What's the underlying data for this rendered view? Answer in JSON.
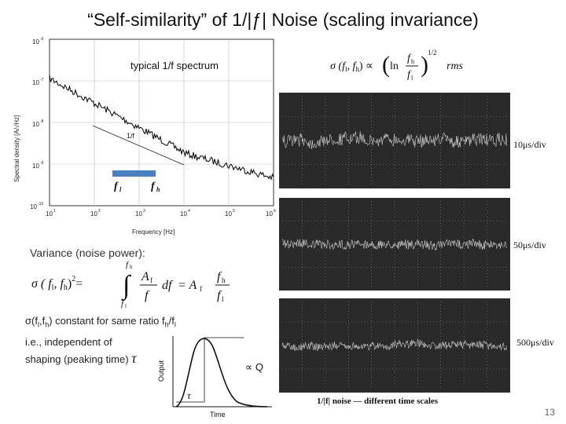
{
  "slide": {
    "title": "“Self-similarity” of 1/|ƒ| Noise (scaling invariance)",
    "page_number": "13"
  },
  "spectrum_plot": {
    "annotation": "typical 1/f spectrum",
    "ylabel": "Spectral density [A/√Hz]",
    "xlabel": "Frequency [Hz]",
    "x_ticks": [
      "10",
      "10",
      "10",
      "10",
      "10",
      "10"
    ],
    "x_tick_exponents": [
      "1",
      "2",
      "3",
      "4",
      "5",
      "6"
    ],
    "y_ticks": [
      "10",
      "10",
      "10",
      "10",
      "10"
    ],
    "y_tick_exponents": [
      "-6",
      "-7",
      "-8",
      "-9",
      "-10"
    ],
    "slope_label": "1/f",
    "band_low_label": "f",
    "band_low_sub": "l",
    "band_high_label": "f",
    "band_high_sub": "h",
    "band_color": "#4a7fc0"
  },
  "rms_formula": {
    "lhs": "σ (f",
    "lhs_sub1": "l",
    "lhs_mid": ", f",
    "lhs_sub2": "h",
    "lhs_close": ") ∝",
    "ln": "ln",
    "num": "f",
    "num_sub": "h",
    "den": "f",
    "den_sub": "l",
    "power": "1/2",
    "suffix": "rms"
  },
  "variance": {
    "label": "Variance (noise power):",
    "lhs": "σ ( f",
    "lhs_sub1": "l",
    "lhs_mid": ", f",
    "lhs_sub2": "h",
    "lhs_close": ")",
    "lhs_power": "2",
    "eq": "=",
    "upper_limit": "f",
    "upper_limit_sub": "h",
    "lower_limit": "f",
    "lower_limit_sub": "l",
    "integrand_num": "A",
    "integrand_num_sub": "f",
    "integrand_den": "f",
    "df": "df",
    "rhs_eq": "= A",
    "rhs_sub": "f",
    "ln": "ln",
    "ratio_num": "f",
    "ratio_num_sub": "h",
    "ratio_den": "f",
    "ratio_den_sub": "l"
  },
  "note": {
    "line1_prefix": "σ(f",
    "line1_sub1": "l",
    "line1_mid": ",f",
    "line1_sub2": "h",
    "line1_rest": ") constant for same ratio f",
    "line1_sub3": "h",
    "line1_slash": "/f",
    "line1_sub4": "l",
    "line2": "i.e., independent of",
    "line3": "shaping (peaking time) ",
    "tau": "τ"
  },
  "pulse_plot": {
    "ylabel": "Output",
    "xlabel": "Time",
    "tau_label": "τ",
    "amplitude_label": "∝ Q"
  },
  "oscilloscope": {
    "panels": [
      {
        "time_scale": "10μs/div"
      },
      {
        "time_scale": "50μs/div"
      },
      {
        "time_scale": "500μs/div"
      }
    ],
    "caption_prefix": "1/|f| noise",
    "caption_dash": "—",
    "caption_rest": "different time scales"
  }
}
